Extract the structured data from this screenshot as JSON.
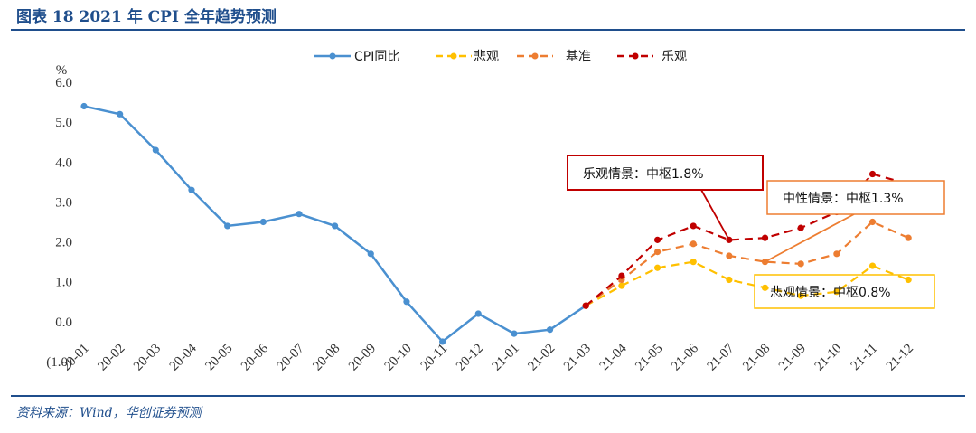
{
  "title": "图表 18   2021 年 CPI 全年趋势预测",
  "source": "资料来源：Wind，华创证券预测",
  "chart_data": {
    "type": "line",
    "ylabel": "%",
    "ylim": [
      -1.0,
      6.0
    ],
    "yticks": [
      "(1.0)",
      "0.0",
      "1.0",
      "2.0",
      "3.0",
      "4.0",
      "5.0",
      "6.0"
    ],
    "categories": [
      "20-01",
      "20-02",
      "20-03",
      "20-04",
      "20-05",
      "20-06",
      "20-07",
      "20-08",
      "20-09",
      "20-10",
      "20-11",
      "20-12",
      "21-01",
      "21-02",
      "21-03",
      "21-04",
      "21-05",
      "21-06",
      "21-07",
      "21-08",
      "21-09",
      "21-10",
      "21-11",
      "21-12"
    ],
    "legend_position": "top-center",
    "series": [
      {
        "name": "CPI同比",
        "color": "#4a90d0",
        "style": "solid",
        "values": [
          5.4,
          5.2,
          4.3,
          3.3,
          2.4,
          2.5,
          2.7,
          2.4,
          1.7,
          0.5,
          -0.5,
          0.2,
          -0.3,
          -0.2,
          0.4,
          null,
          null,
          null,
          null,
          null,
          null,
          null,
          null,
          null
        ]
      },
      {
        "name": "悲观",
        "color": "#ffc000",
        "style": "dashed",
        "values": [
          null,
          null,
          null,
          null,
          null,
          null,
          null,
          null,
          null,
          null,
          null,
          null,
          null,
          null,
          0.4,
          0.9,
          1.35,
          1.5,
          1.05,
          0.85,
          0.65,
          0.75,
          1.4,
          1.05
        ]
      },
      {
        "name": "基准",
        "color": "#ed7d31",
        "style": "dashed",
        "values": [
          null,
          null,
          null,
          null,
          null,
          null,
          null,
          null,
          null,
          null,
          null,
          null,
          null,
          null,
          0.4,
          1.05,
          1.75,
          1.95,
          1.65,
          1.5,
          1.45,
          1.7,
          2.5,
          2.1
        ]
      },
      {
        "name": "乐观",
        "color": "#c00000",
        "style": "dashed",
        "values": [
          null,
          null,
          null,
          null,
          null,
          null,
          null,
          null,
          null,
          null,
          null,
          null,
          null,
          null,
          0.4,
          1.15,
          2.05,
          2.4,
          2.05,
          2.1,
          2.35,
          2.75,
          3.7,
          3.45
        ]
      }
    ],
    "annotations": [
      {
        "text": "乐观情景：中枢1.8%",
        "color": "#c00000",
        "series": "乐观",
        "target_index": 18
      },
      {
        "text": "中性情景：中枢1.3%",
        "color": "#ed7d31",
        "series": "基准",
        "target_index": 19
      },
      {
        "text": "悲观情景：中枢0.8%",
        "color": "#ffc000",
        "series": "悲观",
        "target_index": 19
      }
    ]
  }
}
